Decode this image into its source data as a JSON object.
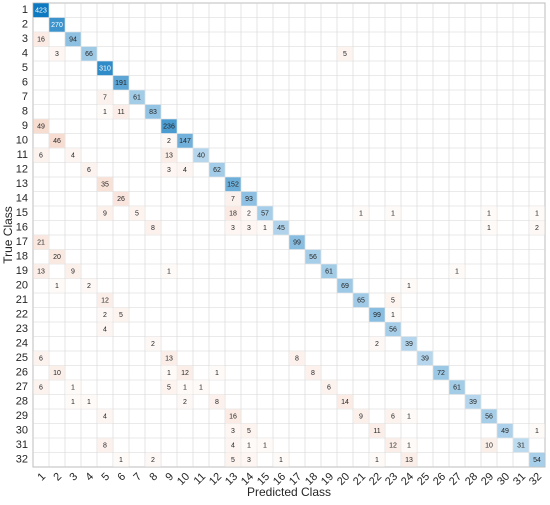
{
  "chart_data": {
    "type": "confusion_matrix",
    "x_label": "Predicted Class",
    "y_label": "True Class",
    "categories": [
      "1",
      "2",
      "3",
      "4",
      "5",
      "6",
      "7",
      "8",
      "9",
      "10",
      "11",
      "12",
      "13",
      "14",
      "15",
      "16",
      "17",
      "18",
      "19",
      "20",
      "21",
      "22",
      "23",
      "24",
      "25",
      "26",
      "27",
      "28",
      "29",
      "30",
      "31",
      "32"
    ],
    "diagonal_color": "#0072bd",
    "off_diagonal_color": "#d95319",
    "matrix": [
      [
        423,
        null,
        null,
        null,
        null,
        null,
        null,
        null,
        null,
        null,
        null,
        null,
        null,
        null,
        null,
        null,
        null,
        null,
        null,
        null,
        null,
        null,
        null,
        null,
        null,
        null,
        null,
        null,
        null,
        null,
        null,
        null
      ],
      [
        null,
        270,
        null,
        null,
        null,
        null,
        null,
        null,
        null,
        null,
        null,
        null,
        null,
        null,
        null,
        null,
        null,
        null,
        null,
        null,
        null,
        null,
        null,
        null,
        null,
        null,
        null,
        null,
        null,
        null,
        null,
        null
      ],
      [
        16,
        null,
        94,
        null,
        null,
        null,
        null,
        null,
        null,
        null,
        null,
        null,
        null,
        null,
        null,
        null,
        null,
        null,
        null,
        null,
        null,
        null,
        null,
        null,
        null,
        null,
        null,
        null,
        null,
        null,
        null,
        null
      ],
      [
        null,
        3,
        null,
        66,
        null,
        null,
        null,
        null,
        null,
        null,
        null,
        null,
        null,
        null,
        null,
        null,
        null,
        null,
        null,
        5,
        null,
        null,
        null,
        null,
        null,
        null,
        null,
        null,
        null,
        null,
        null,
        null
      ],
      [
        null,
        null,
        null,
        null,
        310,
        null,
        null,
        null,
        null,
        null,
        null,
        null,
        null,
        null,
        null,
        null,
        null,
        null,
        null,
        null,
        null,
        null,
        null,
        null,
        null,
        null,
        null,
        null,
        null,
        null,
        null,
        null
      ],
      [
        null,
        null,
        null,
        null,
        null,
        191,
        null,
        null,
        null,
        null,
        null,
        null,
        null,
        null,
        null,
        null,
        null,
        null,
        null,
        null,
        null,
        null,
        null,
        null,
        null,
        null,
        null,
        null,
        null,
        null,
        null,
        null
      ],
      [
        null,
        null,
        null,
        null,
        7,
        null,
        61,
        null,
        null,
        null,
        null,
        null,
        null,
        null,
        null,
        null,
        null,
        null,
        null,
        null,
        null,
        null,
        null,
        null,
        null,
        null,
        null,
        null,
        null,
        null,
        null,
        null
      ],
      [
        null,
        null,
        null,
        null,
        1,
        11,
        null,
        83,
        null,
        null,
        null,
        null,
        null,
        null,
        null,
        null,
        null,
        null,
        null,
        null,
        null,
        null,
        null,
        null,
        null,
        null,
        null,
        null,
        null,
        null,
        null,
        null
      ],
      [
        49,
        null,
        null,
        null,
        null,
        null,
        null,
        null,
        236,
        null,
        null,
        null,
        null,
        null,
        null,
        null,
        null,
        null,
        null,
        null,
        null,
        null,
        null,
        null,
        null,
        null,
        null,
        null,
        null,
        null,
        null,
        null
      ],
      [
        null,
        46,
        null,
        null,
        null,
        null,
        null,
        null,
        2,
        147,
        null,
        null,
        null,
        null,
        null,
        null,
        null,
        null,
        null,
        null,
        null,
        null,
        null,
        null,
        null,
        null,
        null,
        null,
        null,
        null,
        null,
        null
      ],
      [
        6,
        null,
        4,
        null,
        null,
        null,
        null,
        null,
        13,
        null,
        40,
        null,
        null,
        null,
        null,
        null,
        null,
        null,
        null,
        null,
        null,
        null,
        null,
        null,
        null,
        null,
        null,
        null,
        null,
        null,
        null,
        null
      ],
      [
        null,
        null,
        null,
        6,
        null,
        null,
        null,
        null,
        3,
        4,
        null,
        62,
        null,
        null,
        null,
        null,
        null,
        null,
        null,
        null,
        null,
        null,
        null,
        null,
        null,
        null,
        null,
        null,
        null,
        null,
        null,
        null
      ],
      [
        null,
        null,
        null,
        null,
        35,
        null,
        null,
        null,
        null,
        null,
        null,
        null,
        152,
        null,
        null,
        null,
        null,
        null,
        null,
        null,
        null,
        null,
        null,
        null,
        null,
        null,
        null,
        null,
        null,
        null,
        null,
        null
      ],
      [
        null,
        null,
        null,
        null,
        null,
        26,
        null,
        null,
        null,
        null,
        null,
        null,
        7,
        93,
        null,
        null,
        null,
        null,
        null,
        null,
        null,
        null,
        null,
        null,
        null,
        null,
        null,
        null,
        null,
        null,
        null,
        null
      ],
      [
        null,
        null,
        null,
        null,
        9,
        null,
        5,
        null,
        null,
        null,
        null,
        null,
        18,
        2,
        57,
        null,
        null,
        null,
        null,
        null,
        1,
        null,
        1,
        null,
        null,
        null,
        null,
        null,
        1,
        null,
        null,
        1
      ],
      [
        null,
        null,
        null,
        null,
        null,
        null,
        null,
        8,
        null,
        null,
        null,
        null,
        3,
        3,
        1,
        45,
        null,
        null,
        null,
        null,
        null,
        null,
        null,
        null,
        null,
        null,
        null,
        null,
        1,
        null,
        null,
        2
      ],
      [
        21,
        null,
        null,
        null,
        null,
        null,
        null,
        null,
        null,
        null,
        null,
        null,
        null,
        null,
        null,
        null,
        99,
        null,
        null,
        null,
        null,
        null,
        null,
        null,
        null,
        null,
        null,
        null,
        null,
        null,
        null,
        null
      ],
      [
        null,
        20,
        null,
        null,
        null,
        null,
        null,
        null,
        null,
        null,
        null,
        null,
        null,
        null,
        null,
        null,
        null,
        56,
        null,
        null,
        null,
        null,
        null,
        null,
        null,
        null,
        null,
        null,
        null,
        null,
        null,
        null
      ],
      [
        13,
        null,
        9,
        null,
        null,
        null,
        null,
        null,
        1,
        null,
        null,
        null,
        null,
        null,
        null,
        null,
        null,
        null,
        61,
        null,
        null,
        null,
        null,
        null,
        null,
        null,
        1,
        null,
        null,
        null,
        null,
        null
      ],
      [
        null,
        1,
        null,
        2,
        null,
        null,
        null,
        null,
        null,
        null,
        null,
        null,
        null,
        null,
        null,
        null,
        null,
        null,
        null,
        69,
        null,
        null,
        null,
        1,
        null,
        null,
        null,
        null,
        null,
        null,
        null,
        null
      ],
      [
        null,
        null,
        null,
        null,
        12,
        null,
        null,
        null,
        null,
        null,
        null,
        null,
        null,
        null,
        null,
        null,
        null,
        null,
        null,
        null,
        65,
        null,
        5,
        null,
        null,
        null,
        null,
        null,
        null,
        null,
        null,
        null
      ],
      [
        null,
        null,
        null,
        null,
        2,
        5,
        null,
        null,
        null,
        null,
        null,
        null,
        null,
        null,
        null,
        null,
        null,
        null,
        null,
        null,
        null,
        99,
        1,
        null,
        null,
        null,
        null,
        null,
        null,
        null,
        null,
        null
      ],
      [
        null,
        null,
        null,
        null,
        4,
        null,
        null,
        null,
        null,
        null,
        null,
        null,
        null,
        null,
        null,
        null,
        null,
        null,
        null,
        null,
        null,
        null,
        56,
        null,
        null,
        null,
        null,
        null,
        null,
        null,
        null,
        null
      ],
      [
        null,
        null,
        null,
        null,
        null,
        null,
        null,
        2,
        null,
        null,
        null,
        null,
        null,
        null,
        null,
        null,
        null,
        null,
        null,
        null,
        null,
        2,
        null,
        39,
        null,
        null,
        null,
        null,
        null,
        null,
        null,
        null
      ],
      [
        6,
        null,
        null,
        null,
        null,
        null,
        null,
        null,
        13,
        null,
        null,
        null,
        null,
        null,
        null,
        null,
        8,
        null,
        null,
        null,
        null,
        null,
        null,
        null,
        39,
        null,
        null,
        null,
        null,
        null,
        null,
        null
      ],
      [
        null,
        10,
        null,
        null,
        null,
        null,
        null,
        null,
        1,
        12,
        null,
        1,
        null,
        null,
        null,
        null,
        null,
        8,
        null,
        null,
        null,
        null,
        null,
        null,
        null,
        72,
        null,
        null,
        null,
        null,
        null,
        null
      ],
      [
        6,
        null,
        1,
        null,
        null,
        null,
        null,
        null,
        5,
        1,
        1,
        null,
        null,
        null,
        null,
        null,
        null,
        null,
        6,
        null,
        null,
        null,
        null,
        null,
        null,
        null,
        61,
        null,
        null,
        null,
        null,
        null
      ],
      [
        null,
        null,
        1,
        1,
        null,
        null,
        null,
        null,
        null,
        2,
        null,
        8,
        null,
        null,
        null,
        null,
        null,
        null,
        null,
        14,
        null,
        null,
        null,
        null,
        null,
        null,
        null,
        39,
        null,
        null,
        null,
        null
      ],
      [
        null,
        null,
        null,
        null,
        4,
        null,
        null,
        null,
        null,
        null,
        null,
        null,
        16,
        null,
        null,
        null,
        null,
        null,
        null,
        null,
        9,
        null,
        6,
        1,
        null,
        null,
        null,
        null,
        56,
        null,
        null,
        null
      ],
      [
        null,
        null,
        null,
        null,
        null,
        null,
        null,
        null,
        null,
        null,
        null,
        null,
        3,
        5,
        null,
        null,
        null,
        null,
        null,
        null,
        null,
        11,
        null,
        null,
        null,
        null,
        null,
        null,
        null,
        49,
        null,
        1
      ],
      [
        null,
        null,
        null,
        null,
        8,
        null,
        null,
        null,
        null,
        null,
        null,
        null,
        4,
        1,
        1,
        null,
        null,
        null,
        null,
        null,
        null,
        null,
        12,
        1,
        null,
        null,
        null,
        null,
        10,
        null,
        31,
        null
      ],
      [
        null,
        null,
        null,
        null,
        null,
        1,
        null,
        2,
        null,
        null,
        null,
        null,
        5,
        3,
        null,
        1,
        null,
        null,
        null,
        null,
        null,
        1,
        null,
        13,
        null,
        null,
        null,
        null,
        null,
        null,
        null,
        54
      ]
    ]
  }
}
